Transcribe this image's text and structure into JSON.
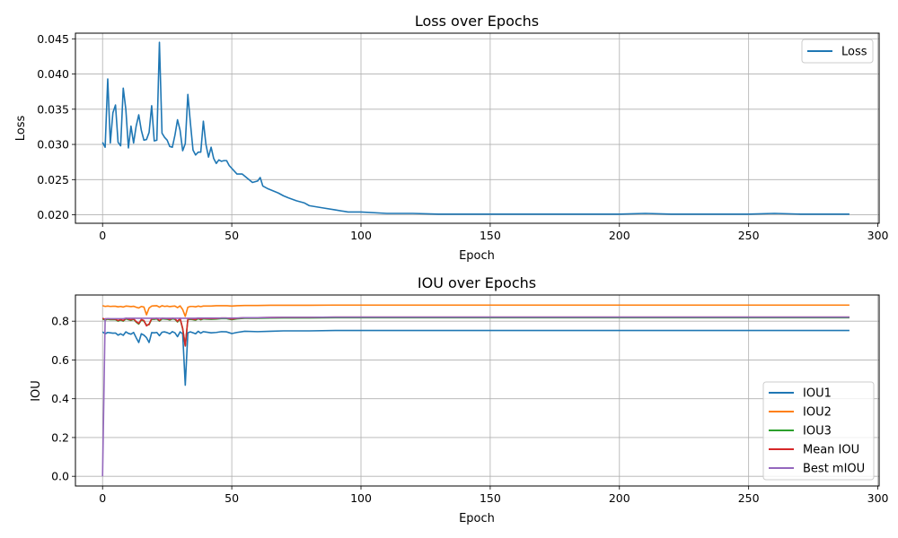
{
  "chart_data": [
    {
      "type": "line",
      "title": "Loss over Epochs",
      "xlabel": "Epoch",
      "ylabel": "Loss",
      "xlim": [
        -10.5,
        300.5
      ],
      "ylim": [
        0.0188,
        0.0458
      ],
      "xticks": [
        0,
        50,
        100,
        150,
        200,
        250,
        300
      ],
      "xtick_labels": [
        "0",
        "50",
        "100",
        "150",
        "200",
        "250",
        "300"
      ],
      "yticks": [
        0.02,
        0.025,
        0.03,
        0.035,
        0.04,
        0.045
      ],
      "ytick_labels": [
        "0.020",
        "0.025",
        "0.030",
        "0.035",
        "0.040",
        "0.045"
      ],
      "grid": true,
      "legend_position": "upper right",
      "series": [
        {
          "name": "Loss",
          "color": "#1f77b4",
          "x": [
            0,
            1,
            2,
            3,
            4,
            5,
            6,
            7,
            8,
            9,
            10,
            11,
            12,
            13,
            14,
            15,
            16,
            17,
            18,
            19,
            20,
            21,
            22,
            23,
            24,
            25,
            26,
            27,
            28,
            29,
            30,
            31,
            32,
            33,
            34,
            35,
            36,
            37,
            38,
            39,
            40,
            41,
            42,
            43,
            44,
            45,
            46,
            47,
            48,
            49,
            50,
            52,
            54,
            56,
            58,
            60,
            61,
            62,
            64,
            66,
            68,
            70,
            72,
            75,
            78,
            80,
            85,
            90,
            95,
            100,
            110,
            120,
            130,
            140,
            150,
            160,
            170,
            180,
            190,
            200,
            210,
            220,
            230,
            240,
            250,
            260,
            270,
            280,
            289
          ],
          "y": [
            0.0303,
            0.0296,
            0.0393,
            0.0302,
            0.0345,
            0.0356,
            0.0303,
            0.0298,
            0.038,
            0.035,
            0.0295,
            0.0326,
            0.0302,
            0.0326,
            0.0342,
            0.032,
            0.0306,
            0.0307,
            0.0317,
            0.0355,
            0.0305,
            0.0306,
            0.0445,
            0.0316,
            0.031,
            0.0306,
            0.0297,
            0.0296,
            0.0313,
            0.0335,
            0.032,
            0.0291,
            0.0301,
            0.0371,
            0.033,
            0.0292,
            0.0285,
            0.0289,
            0.0289,
            0.0333,
            0.03,
            0.0282,
            0.0296,
            0.028,
            0.0273,
            0.0278,
            0.0276,
            0.0277,
            0.0277,
            0.027,
            0.0266,
            0.0258,
            0.0258,
            0.0252,
            0.0246,
            0.0248,
            0.0253,
            0.0241,
            0.0237,
            0.0234,
            0.0231,
            0.0227,
            0.0224,
            0.022,
            0.0217,
            0.0213,
            0.021,
            0.0207,
            0.0204,
            0.0204,
            0.0202,
            0.0202,
            0.0201,
            0.0201,
            0.0201,
            0.0201,
            0.0201,
            0.0201,
            0.0201,
            0.0201,
            0.0202,
            0.0201,
            0.0201,
            0.0201,
            0.0201,
            0.0202,
            0.0201,
            0.0201,
            0.0201
          ]
        }
      ]
    },
    {
      "type": "line",
      "title": "IOU over Epochs",
      "xlabel": "Epoch",
      "ylabel": "IOU",
      "xlim": [
        -10.5,
        300.5
      ],
      "ylim": [
        -0.05,
        0.935
      ],
      "xticks": [
        0,
        50,
        100,
        150,
        200,
        250,
        300
      ],
      "xtick_labels": [
        "0",
        "50",
        "100",
        "150",
        "200",
        "250",
        "300"
      ],
      "yticks": [
        0.0,
        0.2,
        0.4,
        0.6,
        0.8
      ],
      "ytick_labels": [
        "0.0",
        "0.2",
        "0.4",
        "0.6",
        "0.8"
      ],
      "grid": true,
      "legend_position": "lower right",
      "x": [
        0,
        1,
        2,
        3,
        4,
        5,
        6,
        7,
        8,
        9,
        10,
        11,
        12,
        13,
        14,
        15,
        16,
        17,
        18,
        19,
        20,
        21,
        22,
        23,
        24,
        25,
        26,
        27,
        28,
        29,
        30,
        31,
        32,
        33,
        34,
        35,
        36,
        37,
        38,
        39,
        40,
        42,
        44,
        46,
        48,
        50,
        52,
        55,
        60,
        65,
        70,
        80,
        90,
        100,
        120,
        150,
        200,
        250,
        289
      ],
      "series": [
        {
          "name": "IOU1",
          "color": "#1f77b4",
          "values": [
            0.745,
            0.735,
            0.742,
            0.74,
            0.738,
            0.739,
            0.728,
            0.735,
            0.727,
            0.745,
            0.737,
            0.733,
            0.742,
            0.715,
            0.69,
            0.735,
            0.728,
            0.715,
            0.69,
            0.741,
            0.74,
            0.742,
            0.725,
            0.743,
            0.745,
            0.741,
            0.735,
            0.746,
            0.74,
            0.72,
            0.745,
            0.735,
            0.47,
            0.74,
            0.745,
            0.74,
            0.735,
            0.748,
            0.738,
            0.746,
            0.744,
            0.74,
            0.742,
            0.746,
            0.745,
            0.736,
            0.742,
            0.748,
            0.746,
            0.748,
            0.75,
            0.75,
            0.752,
            0.752,
            0.752,
            0.752,
            0.752,
            0.752,
            0.752
          ]
        },
        {
          "name": "IOU2",
          "color": "#ff7f0e",
          "values": [
            0.88,
            0.876,
            0.878,
            0.876,
            0.877,
            0.877,
            0.874,
            0.876,
            0.873,
            0.878,
            0.877,
            0.875,
            0.877,
            0.872,
            0.868,
            0.876,
            0.873,
            0.833,
            0.868,
            0.878,
            0.879,
            0.88,
            0.872,
            0.88,
            0.876,
            0.878,
            0.875,
            0.877,
            0.878,
            0.87,
            0.879,
            0.86,
            0.825,
            0.872,
            0.876,
            0.876,
            0.874,
            0.878,
            0.875,
            0.878,
            0.878,
            0.878,
            0.88,
            0.88,
            0.88,
            0.878,
            0.88,
            0.881,
            0.881,
            0.882,
            0.882,
            0.882,
            0.883,
            0.883,
            0.883,
            0.883,
            0.883,
            0.883,
            0.883
          ]
        },
        {
          "name": "IOU3",
          "color": "#2ca02c",
          "values": [
            0.812,
            0.806,
            0.81,
            0.808,
            0.808,
            0.808,
            0.8,
            0.806,
            0.8,
            0.812,
            0.808,
            0.804,
            0.81,
            0.795,
            0.785,
            0.806,
            0.8,
            0.78,
            0.782,
            0.81,
            0.81,
            0.812,
            0.8,
            0.812,
            0.811,
            0.81,
            0.806,
            0.812,
            0.81,
            0.796,
            0.812,
            0.76,
            0.672,
            0.808,
            0.81,
            0.808,
            0.805,
            0.813,
            0.807,
            0.812,
            0.811,
            0.81,
            0.811,
            0.813,
            0.813,
            0.808,
            0.812,
            0.815,
            0.815,
            0.816,
            0.817,
            0.817,
            0.818,
            0.818,
            0.818,
            0.818,
            0.818,
            0.818,
            0.818
          ]
        },
        {
          "name": "Mean IOU",
          "color": "#d62728",
          "values": [
            0.815,
            0.809,
            0.813,
            0.811,
            0.811,
            0.811,
            0.803,
            0.809,
            0.803,
            0.815,
            0.811,
            0.807,
            0.813,
            0.798,
            0.788,
            0.809,
            0.803,
            0.776,
            0.785,
            0.813,
            0.813,
            0.815,
            0.803,
            0.815,
            0.814,
            0.813,
            0.809,
            0.815,
            0.813,
            0.799,
            0.815,
            0.763,
            0.672,
            0.811,
            0.813,
            0.811,
            0.808,
            0.816,
            0.81,
            0.815,
            0.814,
            0.813,
            0.814,
            0.816,
            0.816,
            0.811,
            0.815,
            0.818,
            0.818,
            0.819,
            0.82,
            0.82,
            0.821,
            0.821,
            0.821,
            0.821,
            0.821,
            0.821,
            0.821
          ]
        },
        {
          "name": "Best mIOU",
          "color": "#9467bd",
          "values": [
            0.0,
            0.813,
            0.813,
            0.813,
            0.813,
            0.813,
            0.813,
            0.813,
            0.813,
            0.815,
            0.815,
            0.815,
            0.815,
            0.815,
            0.815,
            0.815,
            0.815,
            0.815,
            0.815,
            0.815,
            0.815,
            0.815,
            0.815,
            0.815,
            0.815,
            0.815,
            0.815,
            0.815,
            0.815,
            0.815,
            0.815,
            0.815,
            0.815,
            0.815,
            0.815,
            0.815,
            0.815,
            0.816,
            0.816,
            0.816,
            0.816,
            0.816,
            0.816,
            0.816,
            0.816,
            0.816,
            0.816,
            0.818,
            0.818,
            0.819,
            0.82,
            0.82,
            0.821,
            0.821,
            0.821,
            0.821,
            0.821,
            0.821,
            0.821
          ]
        }
      ]
    }
  ]
}
